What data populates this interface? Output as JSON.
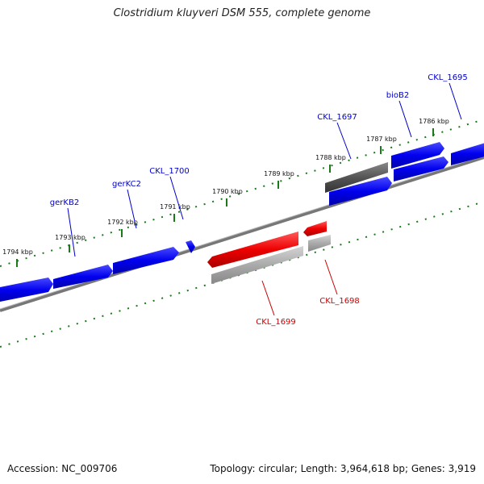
{
  "title": "Clostridium kluyveri DSM 555, complete genome",
  "footer": {
    "accession": "Accession: NC_009706",
    "topology": "Topology: circular; Length: 3,964,618 bp; Genes: 3,919"
  },
  "colors": {
    "forward": "#0000ee",
    "reverse": "#ee0000",
    "gray_dark": "#555555",
    "gray_light": "#aaaaaa",
    "tick": "#1a7a1a",
    "label_forward": "#0000cc",
    "label_reverse": "#cc0000"
  },
  "scale": {
    "ticks": [
      {
        "label": "1794 kbp"
      },
      {
        "label": "1793 kbp"
      },
      {
        "label": "1792 kbp"
      },
      {
        "label": "1791 kbp"
      },
      {
        "label": "1790 kbp"
      },
      {
        "label": "1789 kbp"
      },
      {
        "label": "1788 kbp"
      },
      {
        "label": "1787 kbp"
      },
      {
        "label": "1786 kbp"
      }
    ]
  },
  "gene_labels": {
    "gerKB2": "gerKB2",
    "gerKC2": "gerKC2",
    "CKL_1700": "CKL_1700",
    "CKL_1697": "CKL_1697",
    "bioB2": "bioB2",
    "CKL_1695": "CKL_1695",
    "CKL_1699": "CKL_1699",
    "CKL_1698": "CKL_1698"
  }
}
